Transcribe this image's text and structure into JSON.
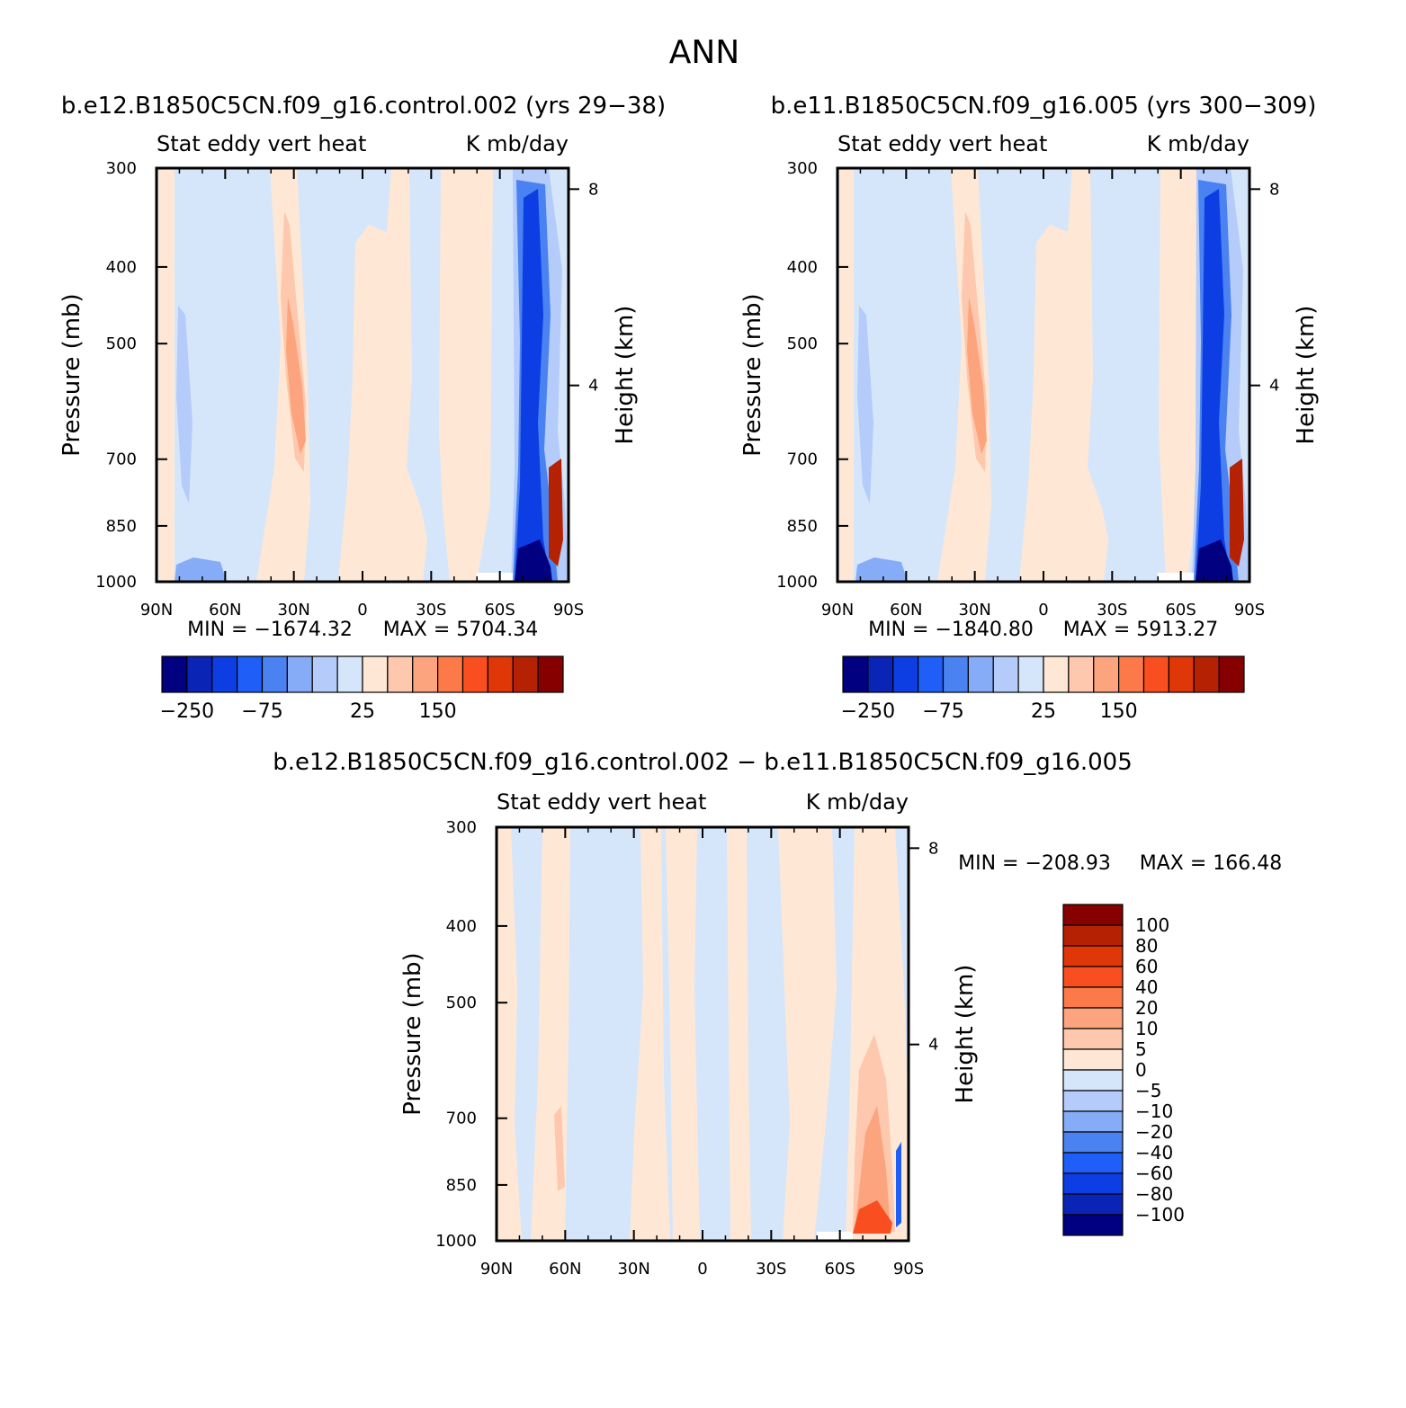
{
  "figure_title": "ANN",
  "chart_data": [
    {
      "type": "heatmap",
      "id": "case1",
      "title": "b.e12.B1850C5CN.f09_g16.control.002 (yrs 29−38)",
      "left_subtitle": "Stat eddy vert heat",
      "right_subtitle": "K mb/day",
      "xlabel": "",
      "ylabel": "Pressure (mb)",
      "y2label": "Height (km)",
      "x_ticks": [
        "90N",
        "60N",
        "30N",
        "0",
        "30S",
        "60S",
        "90S"
      ],
      "x_values": [
        90,
        60,
        30,
        0,
        -30,
        -60,
        -90
      ],
      "y_ticks": [
        "300",
        "400",
        "500",
        "700",
        "850",
        "1000"
      ],
      "y_values": [
        300,
        400,
        500,
        700,
        850,
        1000
      ],
      "y2_ticks": [
        "8",
        "4"
      ],
      "y2_values": [
        8,
        4
      ],
      "xlim": [
        90,
        -90
      ],
      "ylim": [
        1000,
        300
      ],
      "stats": {
        "min_label": "MIN = −1674.32",
        "max_label": "MAX = 5704.34",
        "min": -1674.32,
        "max": 5704.34
      },
      "colorbar_labels": [
        "−250",
        "−75",
        "25",
        "150"
      ],
      "colorbar_label_index": [
        1,
        4,
        8,
        11
      ]
    },
    {
      "type": "heatmap",
      "id": "case2",
      "title": "b.e11.B1850C5CN.f09_g16.005 (yrs 300−309)",
      "left_subtitle": "Stat eddy vert heat",
      "right_subtitle": "K mb/day",
      "xlabel": "",
      "ylabel": "Pressure (mb)",
      "y2label": "Height (km)",
      "x_ticks": [
        "90N",
        "60N",
        "30N",
        "0",
        "30S",
        "60S",
        "90S"
      ],
      "x_values": [
        90,
        60,
        30,
        0,
        -30,
        -60,
        -90
      ],
      "y_ticks": [
        "300",
        "400",
        "500",
        "700",
        "850",
        "1000"
      ],
      "y_values": [
        300,
        400,
        500,
        700,
        850,
        1000
      ],
      "y2_ticks": [
        "8",
        "4"
      ],
      "y2_values": [
        8,
        4
      ],
      "xlim": [
        90,
        -90
      ],
      "ylim": [
        1000,
        300
      ],
      "stats": {
        "min_label": "MIN = −1840.80",
        "max_label": "MAX = 5913.27",
        "min": -1840.8,
        "max": 5913.27
      },
      "colorbar_labels": [
        "−250",
        "−75",
        "25",
        "150"
      ],
      "colorbar_label_index": [
        1,
        4,
        8,
        11
      ]
    },
    {
      "type": "heatmap",
      "id": "diff",
      "title": "b.e12.B1850C5CN.f09_g16.control.002 − b.e11.B1850C5CN.f09_g16.005",
      "left_subtitle": "Stat eddy vert heat",
      "right_subtitle": "K mb/day",
      "xlabel": "",
      "ylabel": "Pressure (mb)",
      "y2label": "Height (km)",
      "x_ticks": [
        "90N",
        "60N",
        "30N",
        "0",
        "30S",
        "60S",
        "90S"
      ],
      "x_values": [
        90,
        60,
        30,
        0,
        -30,
        -60,
        -90
      ],
      "y_ticks": [
        "300",
        "400",
        "500",
        "700",
        "850",
        "1000"
      ],
      "y_values": [
        300,
        400,
        500,
        700,
        850,
        1000
      ],
      "y2_ticks": [
        "8",
        "4"
      ],
      "y2_values": [
        8,
        4
      ],
      "xlim": [
        90,
        -90
      ],
      "ylim": [
        1000,
        300
      ],
      "stats": {
        "min_label": "MIN = −208.93",
        "max_label": "MAX = 166.48",
        "min": -208.93,
        "max": 166.48
      },
      "colorbar_labels": [
        "100",
        "80",
        "60",
        "40",
        "20",
        "10",
        "5",
        "0",
        "−5",
        "−10",
        "−20",
        "−40",
        "−60",
        "−80",
        "−100"
      ]
    }
  ],
  "palette": [
    "#000080",
    "#0a24b5",
    "#0d3ee3",
    "#1f5ef7",
    "#4a82f2",
    "#86acf7",
    "#b5cbfa",
    "#d5e6fb",
    "#fee8d5",
    "#fdc8ad",
    "#fca47d",
    "#fc7a4a",
    "#f94f20",
    "#e03708",
    "#b42203",
    "#870000"
  ]
}
